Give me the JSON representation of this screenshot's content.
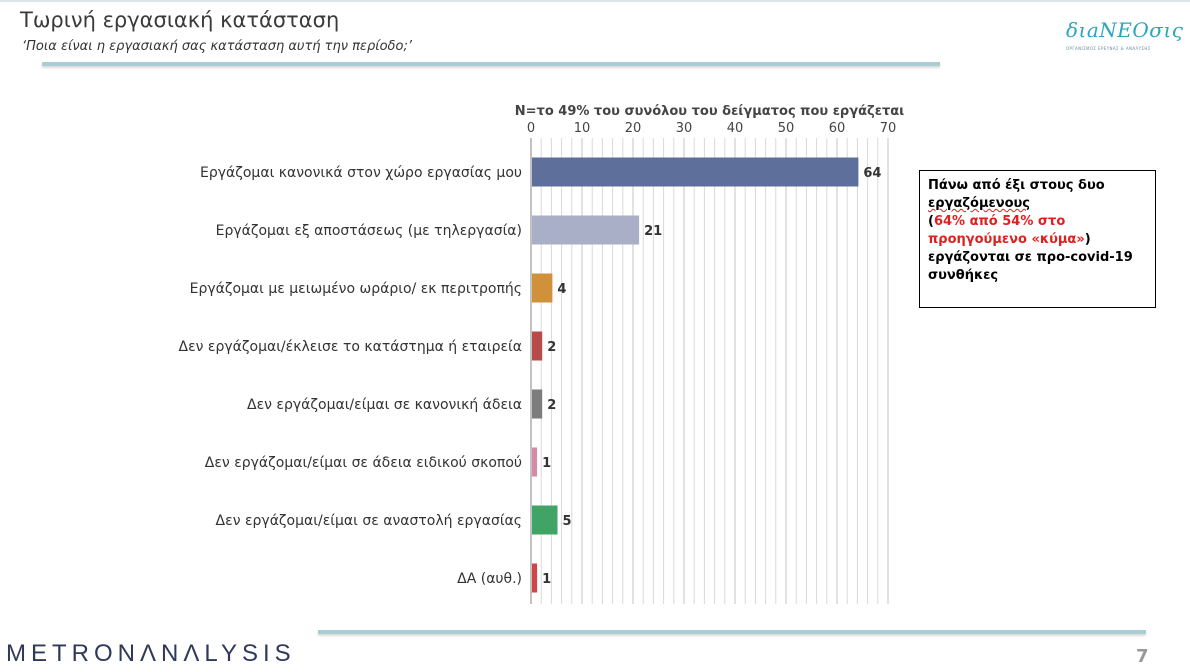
{
  "header": {
    "title": "Τωρινή εργασιακή κατάσταση",
    "subtitle": "‘Ποια είναι η εργασιακή σας κατάσταση αυτή την περίοδο;’"
  },
  "brand": {
    "logo_text": "διaNEOσις",
    "logo_sub": "ΟΡΓΑΝΙΣΜΟΣ ΕΡΕΥΝΑΣ & ΑΝΑΛΥΣΗΣ",
    "footer_logo": "METRONΛNΛLYSIS",
    "page_number": "7"
  },
  "note": {
    "line1": "Πάνω από έξι στους δυο ",
    "line1b": "εργαζόμενους",
    "line2_open": "(",
    "line2_red": "64% από 54% στο προηγούμενο «κύμα»",
    "line2_close": ")",
    "line3": " εργάζονται σε προ-covid-19 συνθήκες"
  },
  "chart_data": {
    "type": "bar",
    "orientation": "horizontal",
    "title": "Ν=το 49% του συνόλου του δείγματος που εργάζεται",
    "categories": [
      "Εργάζομαι κανονικά στον χώρο εργασίας μου",
      "Εργάζομαι εξ αποστάσεως (με τηλεργασία)",
      "Εργάζομαι με μειωμένο ωράριο/ εκ περιτροπής",
      "Δεν εργάζομαι/έκλεισε το κατάστημα ή εταιρεία",
      "Δεν εργάζομαι/είμαι σε κανονική άδεια",
      "Δεν εργάζομαι/είμαι σε άδεια ειδικού σκοπού",
      "Δεν εργάζομαι/είμαι σε αναστολή εργασίας",
      "ΔΑ (αυθ.)"
    ],
    "values": [
      64,
      21,
      4,
      2,
      2,
      1,
      5,
      1
    ],
    "colors": [
      "#5f6f9c",
      "#a9afc6",
      "#d0913a",
      "#b94a4a",
      "#7d7d7d",
      "#d68aa8",
      "#3fa465",
      "#d04545"
    ],
    "xlim": [
      0,
      70
    ],
    "xticks": [
      0,
      10,
      20,
      30,
      40,
      50,
      60,
      70
    ],
    "axis_position": "top",
    "grid": true
  }
}
